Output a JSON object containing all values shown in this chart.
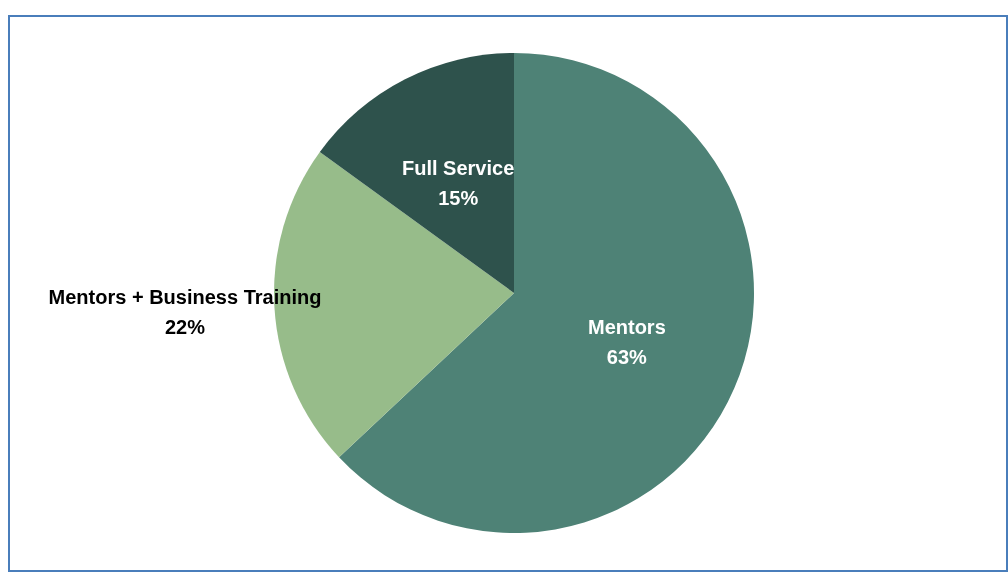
{
  "chart_data": {
    "type": "pie",
    "categories": [
      "Mentors",
      "Mentors + Business Training",
      "Full Service"
    ],
    "values": [
      63,
      22,
      15
    ],
    "value_labels": [
      "63%",
      "22%",
      "15%"
    ],
    "colors": [
      "#4e8276",
      "#97bc8a",
      "#2e524c"
    ],
    "legend": false
  }
}
